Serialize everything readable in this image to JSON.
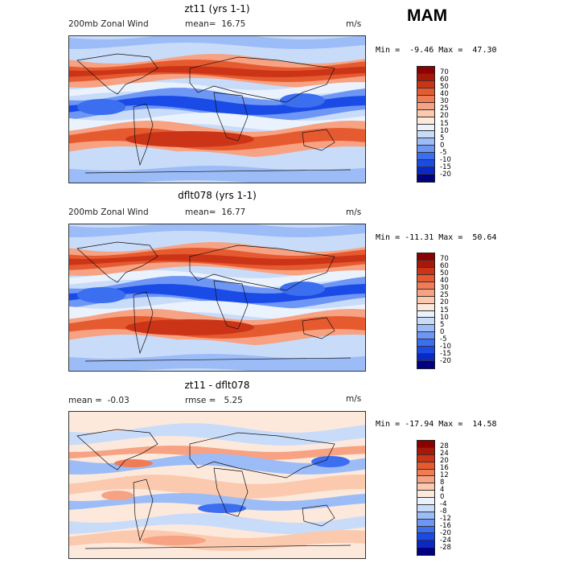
{
  "season": "MAM",
  "chart_data": [
    {
      "type": "heatmap",
      "title": "zt11 (yrs 1-1)",
      "variable": "200mb Zonal Wind",
      "stat_left": "mean=  16.75",
      "units": "m/s",
      "minmax": "Min =  -9.46 Max =  47.30",
      "colorbar_labels": [
        "70",
        "60",
        "50",
        "40",
        "30",
        "25",
        "20",
        "15",
        "10",
        "5",
        "0",
        "-5",
        "-10",
        "-15",
        "-20"
      ],
      "levels": [
        -20,
        -15,
        -10,
        -5,
        0,
        5,
        10,
        15,
        20,
        25,
        30,
        40,
        50,
        60,
        70
      ],
      "mean": 16.75,
      "min": -9.46,
      "max": 47.3
    },
    {
      "type": "heatmap",
      "title": "dflt078 (yrs 1-1)",
      "variable": "200mb Zonal Wind",
      "stat_left": "mean=  16.77",
      "units": "m/s",
      "minmax": "Min = -11.31 Max =  50.64",
      "colorbar_labels": [
        "70",
        "60",
        "50",
        "40",
        "30",
        "25",
        "20",
        "15",
        "10",
        "5",
        "0",
        "-5",
        "-10",
        "-15",
        "-20"
      ],
      "levels": [
        -20,
        -15,
        -10,
        -5,
        0,
        5,
        10,
        15,
        20,
        25,
        30,
        40,
        50,
        60,
        70
      ],
      "mean": 16.77,
      "min": -11.31,
      "max": 50.64
    },
    {
      "type": "heatmap",
      "title": "zt11 - dflt078",
      "stat_left": "mean =  -0.03",
      "stat_mid": "rmse =   5.25",
      "units": "m/s",
      "minmax": "Min = -17.94 Max =  14.58",
      "colorbar_labels": [
        "28",
        "24",
        "20",
        "16",
        "12",
        "8",
        "4",
        "0",
        "-4",
        "-8",
        "-12",
        "-16",
        "-20",
        "-24",
        "-28"
      ],
      "levels": [
        -28,
        -24,
        -20,
        -16,
        -12,
        -8,
        -4,
        0,
        4,
        8,
        12,
        16,
        20,
        24,
        28
      ],
      "mean": -0.03,
      "rmse": 5.25,
      "min": -17.94,
      "max": 14.58
    }
  ],
  "palette_full": [
    "#000080",
    "#0a28c8",
    "#1a4be6",
    "#3c6ef0",
    "#6e96f5",
    "#9cbcf7",
    "#c8dcfa",
    "#eaf2fd",
    "#fde9dc",
    "#fbc9ae",
    "#f6a283",
    "#f07c55",
    "#e65a30",
    "#cc3418",
    "#a81808",
    "#8b0000"
  ],
  "palette_diff": [
    "#000080",
    "#0a28c8",
    "#1a4be6",
    "#3c6ef0",
    "#6e96f5",
    "#9cbcf7",
    "#c8dcfa",
    "#eaf2fd",
    "#fde9dc",
    "#fbc9ae",
    "#f6a283",
    "#f07c55",
    "#e65a30",
    "#cc3418",
    "#a81808",
    "#8b0000"
  ]
}
